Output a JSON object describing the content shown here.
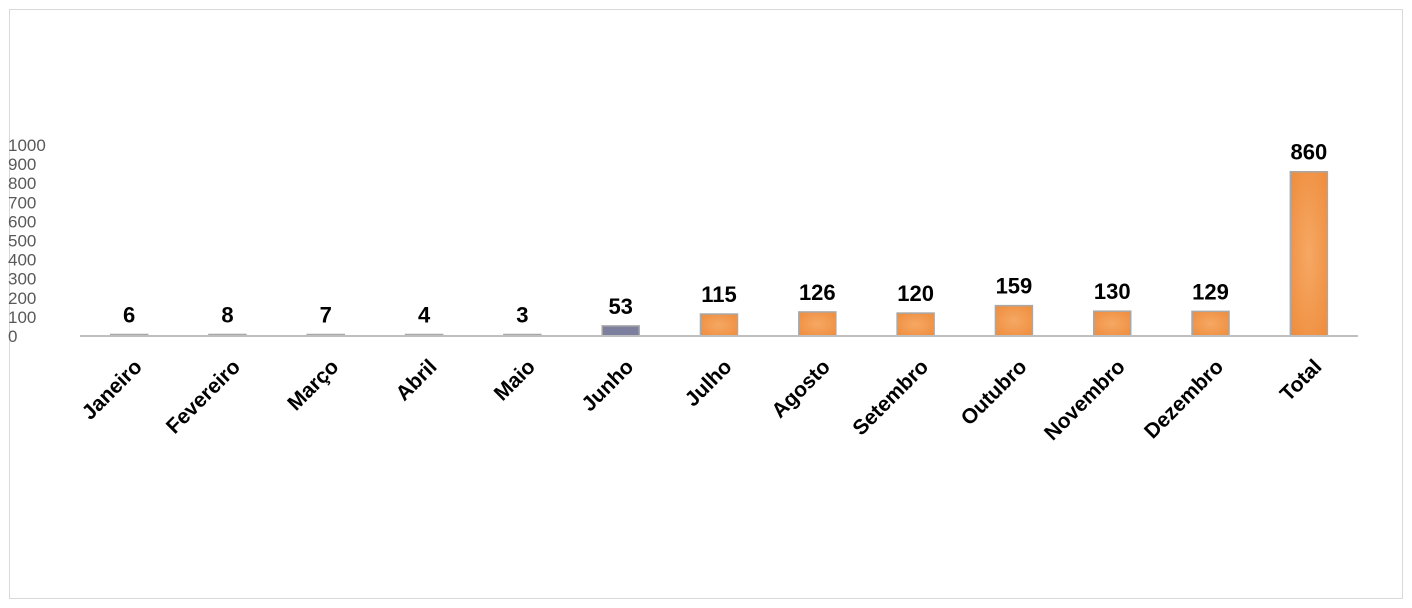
{
  "chart_data": {
    "type": "bar",
    "categories": [
      "Janeiro",
      "Fevereiro",
      "Março",
      "Abril",
      "Maio",
      "Junho",
      "Julho",
      "Agosto",
      "Setembro",
      "Outubro",
      "Novembro",
      "Dezembro",
      "Total"
    ],
    "values": [
      6,
      8,
      7,
      4,
      3,
      53,
      115,
      126,
      120,
      159,
      130,
      129,
      860
    ],
    "yticks": [
      "0",
      "100",
      "200",
      "300",
      "400",
      "500",
      "600",
      "700",
      "800",
      "900",
      "1000"
    ],
    "ylim": [
      0,
      1000
    ],
    "grid": false,
    "legend": "none",
    "colors": {
      "bar": "#f39a4f",
      "bar_edge": "#a8a8a8",
      "junho_bar": "#7d7f9e",
      "axis": "#bfbfbf"
    }
  }
}
